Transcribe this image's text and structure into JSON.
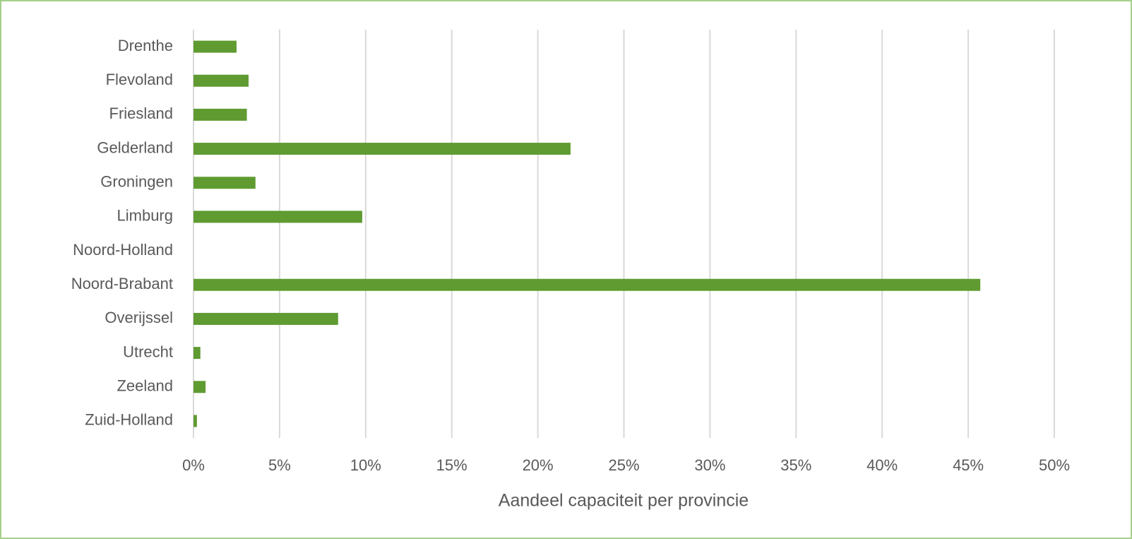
{
  "chart_data": {
    "type": "bar",
    "orientation": "horizontal",
    "x_label": "Aandeel capaciteit per provincie",
    "categories": [
      "Drenthe",
      "Flevoland",
      "Friesland",
      "Gelderland",
      "Groningen",
      "Limburg",
      "Noord-Holland",
      "Noord-Brabant",
      "Overijssel",
      "Utrecht",
      "Zeeland",
      "Zuid-Holland"
    ],
    "values": [
      2.5,
      3.2,
      3.1,
      21.9,
      3.6,
      9.8,
      0,
      45.7,
      8.4,
      0.4,
      0.7,
      0.2
    ],
    "color": "#5f9b31",
    "xlim": [
      0,
      50
    ],
    "xticks": [
      {
        "value": 0,
        "label": "0%"
      },
      {
        "value": 5,
        "label": "5%"
      },
      {
        "value": 10,
        "label": "10%"
      },
      {
        "value": 15,
        "label": "15%"
      },
      {
        "value": 20,
        "label": "20%"
      },
      {
        "value": 25,
        "label": "25%"
      },
      {
        "value": 30,
        "label": "30%"
      },
      {
        "value": 35,
        "label": "35%"
      },
      {
        "value": 40,
        "label": "40%"
      },
      {
        "value": 45,
        "label": "45%"
      },
      {
        "value": 50,
        "label": "50%"
      }
    ],
    "grid": true
  }
}
